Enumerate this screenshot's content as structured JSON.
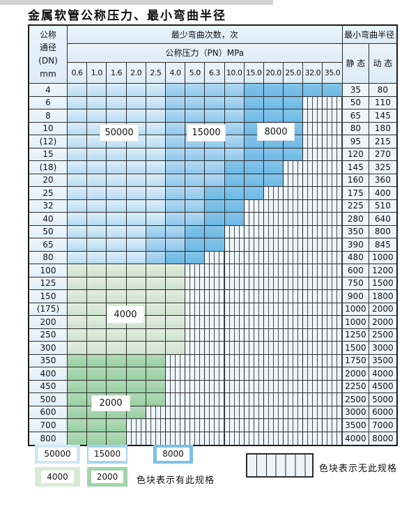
{
  "page": {
    "title": "金属软管公称压力、最小弯曲半径"
  },
  "header": {
    "dn_lines": [
      "公称",
      "通径",
      "(DN)",
      "mm"
    ],
    "bend_cycles": "最少弯曲次数，次",
    "pressure": "公称压力（PN）MPa",
    "min_radius": "最小弯曲半径",
    "static": "静 态",
    "dynamic": "动 态"
  },
  "pressure_columns": [
    "0.6",
    "1.0",
    "1.6",
    "2.0",
    "2.5",
    "4.0",
    "5.0",
    "6.3",
    "10.0",
    "15.0",
    "20.0",
    "25.0",
    "32.0",
    "35.0"
  ],
  "rows": [
    {
      "dn": "4",
      "cells": [
        50000,
        50000,
        50000,
        50000,
        50000,
        15000,
        15000,
        15000,
        15000,
        8000,
        8000,
        8000,
        8000,
        8000
      ],
      "static": "35",
      "dynamic": "80"
    },
    {
      "dn": "6",
      "cells": [
        50000,
        50000,
        50000,
        50000,
        50000,
        15000,
        15000,
        15000,
        15000,
        8000,
        8000,
        8000,
        0,
        0
      ],
      "static": "50",
      "dynamic": "110"
    },
    {
      "dn": "8",
      "cells": [
        50000,
        50000,
        50000,
        50000,
        50000,
        15000,
        15000,
        15000,
        15000,
        8000,
        8000,
        8000,
        0,
        0
      ],
      "static": "65",
      "dynamic": "145"
    },
    {
      "dn": "10",
      "cells": [
        50000,
        50000,
        50000,
        50000,
        50000,
        15000,
        15000,
        15000,
        15000,
        8000,
        8000,
        8000,
        0,
        0
      ],
      "static": "80",
      "dynamic": "180"
    },
    {
      "dn": "(12)",
      "cells": [
        50000,
        50000,
        50000,
        50000,
        50000,
        15000,
        15000,
        15000,
        15000,
        8000,
        8000,
        8000,
        0,
        0
      ],
      "static": "95",
      "dynamic": "215"
    },
    {
      "dn": "15",
      "cells": [
        50000,
        50000,
        50000,
        50000,
        50000,
        15000,
        15000,
        15000,
        15000,
        8000,
        8000,
        8000,
        0,
        0
      ],
      "static": "120",
      "dynamic": "270"
    },
    {
      "dn": "(18)",
      "cells": [
        50000,
        50000,
        50000,
        50000,
        50000,
        15000,
        15000,
        15000,
        8000,
        8000,
        8000,
        0,
        0,
        0
      ],
      "static": "145",
      "dynamic": "325"
    },
    {
      "dn": "20",
      "cells": [
        50000,
        50000,
        50000,
        50000,
        50000,
        15000,
        15000,
        15000,
        8000,
        8000,
        8000,
        0,
        0,
        0
      ],
      "static": "160",
      "dynamic": "360"
    },
    {
      "dn": "25",
      "cells": [
        50000,
        50000,
        50000,
        50000,
        50000,
        15000,
        15000,
        8000,
        8000,
        8000,
        0,
        0,
        0,
        0
      ],
      "static": "175",
      "dynamic": "400"
    },
    {
      "dn": "32",
      "cells": [
        50000,
        50000,
        50000,
        50000,
        50000,
        15000,
        15000,
        8000,
        8000,
        0,
        0,
        0,
        0,
        0
      ],
      "static": "225",
      "dynamic": "510"
    },
    {
      "dn": "40",
      "cells": [
        50000,
        50000,
        50000,
        50000,
        50000,
        15000,
        15000,
        8000,
        8000,
        0,
        0,
        0,
        0,
        0
      ],
      "static": "280",
      "dynamic": "640"
    },
    {
      "dn": "50",
      "cells": [
        50000,
        50000,
        50000,
        50000,
        15000,
        15000,
        8000,
        8000,
        0,
        0,
        0,
        0,
        0,
        0
      ],
      "static": "350",
      "dynamic": "800"
    },
    {
      "dn": "65",
      "cells": [
        50000,
        50000,
        50000,
        50000,
        15000,
        15000,
        8000,
        8000,
        0,
        0,
        0,
        0,
        0,
        0
      ],
      "static": "390",
      "dynamic": "845"
    },
    {
      "dn": "80",
      "cells": [
        50000,
        50000,
        50000,
        50000,
        15000,
        8000,
        8000,
        0,
        0,
        0,
        0,
        0,
        0,
        0
      ],
      "static": "480",
      "dynamic": "1000"
    },
    {
      "dn": "100",
      "cells": [
        4000,
        4000,
        4000,
        4000,
        4000,
        4000,
        0,
        0,
        0,
        0,
        0,
        0,
        0,
        0
      ],
      "static": "600",
      "dynamic": "1200"
    },
    {
      "dn": "125",
      "cells": [
        4000,
        4000,
        4000,
        4000,
        4000,
        4000,
        0,
        0,
        0,
        0,
        0,
        0,
        0,
        0
      ],
      "static": "750",
      "dynamic": "1500"
    },
    {
      "dn": "150",
      "cells": [
        4000,
        4000,
        4000,
        4000,
        4000,
        4000,
        0,
        0,
        0,
        0,
        0,
        0,
        0,
        0
      ],
      "static": "900",
      "dynamic": "1800"
    },
    {
      "dn": "(175)",
      "cells": [
        4000,
        4000,
        4000,
        4000,
        4000,
        4000,
        0,
        0,
        0,
        0,
        0,
        0,
        0,
        0
      ],
      "static": "1000",
      "dynamic": "2000"
    },
    {
      "dn": "200",
      "cells": [
        4000,
        4000,
        4000,
        4000,
        4000,
        4000,
        0,
        0,
        0,
        0,
        0,
        0,
        0,
        0
      ],
      "static": "1000",
      "dynamic": "2000"
    },
    {
      "dn": "250",
      "cells": [
        4000,
        4000,
        4000,
        4000,
        4000,
        4000,
        0,
        0,
        0,
        0,
        0,
        0,
        0,
        0
      ],
      "static": "1250",
      "dynamic": "2500"
    },
    {
      "dn": "300",
      "cells": [
        4000,
        4000,
        4000,
        4000,
        4000,
        4000,
        0,
        0,
        0,
        0,
        0,
        0,
        0,
        0
      ],
      "static": "1500",
      "dynamic": "3000"
    },
    {
      "dn": "350",
      "cells": [
        2000,
        2000,
        2000,
        2000,
        2000,
        0,
        0,
        0,
        0,
        0,
        0,
        0,
        0,
        0
      ],
      "static": "1750",
      "dynamic": "3500"
    },
    {
      "dn": "400",
      "cells": [
        2000,
        2000,
        2000,
        2000,
        2000,
        0,
        0,
        0,
        0,
        0,
        0,
        0,
        0,
        0
      ],
      "static": "2000",
      "dynamic": "4000"
    },
    {
      "dn": "450",
      "cells": [
        2000,
        2000,
        2000,
        2000,
        2000,
        0,
        0,
        0,
        0,
        0,
        0,
        0,
        0,
        0
      ],
      "static": "2250",
      "dynamic": "4500"
    },
    {
      "dn": "500",
      "cells": [
        2000,
        2000,
        2000,
        2000,
        2000,
        0,
        0,
        0,
        0,
        0,
        0,
        0,
        0,
        0
      ],
      "static": "2500",
      "dynamic": "5000"
    },
    {
      "dn": "600",
      "cells": [
        2000,
        2000,
        2000,
        2000,
        0,
        0,
        0,
        0,
        0,
        0,
        0,
        0,
        0,
        0
      ],
      "static": "3000",
      "dynamic": "6000"
    },
    {
      "dn": "700",
      "cells": [
        2000,
        2000,
        2000,
        0,
        0,
        0,
        0,
        0,
        0,
        0,
        0,
        0,
        0,
        0
      ],
      "static": "3500",
      "dynamic": "7000"
    },
    {
      "dn": "800",
      "cells": [
        2000,
        2000,
        2000,
        0,
        0,
        0,
        0,
        0,
        0,
        0,
        0,
        0,
        0,
        0
      ],
      "static": "4000",
      "dynamic": "8000"
    }
  ],
  "overlays": [
    {
      "text": "50000"
    },
    {
      "text": "15000"
    },
    {
      "text": "8000"
    },
    {
      "text": "4000"
    },
    {
      "text": "2000"
    }
  ],
  "legend": {
    "items": [
      {
        "value": "50000",
        "shade": "blue-light"
      },
      {
        "value": "15000",
        "shade": "blue-mid"
      },
      {
        "value": "8000",
        "shade": "blue-dark"
      },
      {
        "value": "4000",
        "shade": "green-light"
      },
      {
        "value": "2000",
        "shade": "green-dark"
      }
    ],
    "has_spec": "色块表示有此规格",
    "no_spec": "色块表示无此规格"
  },
  "colors": {
    "blue_light": "#cfe7f7",
    "blue_mid": "#a5d4f0",
    "blue_dark": "#7bc0e8",
    "green_light": "#d8ead5",
    "green_dark": "#a2d3aa",
    "empty_cell": "#edf5fb",
    "grid_line": "#2b2b2b"
  }
}
